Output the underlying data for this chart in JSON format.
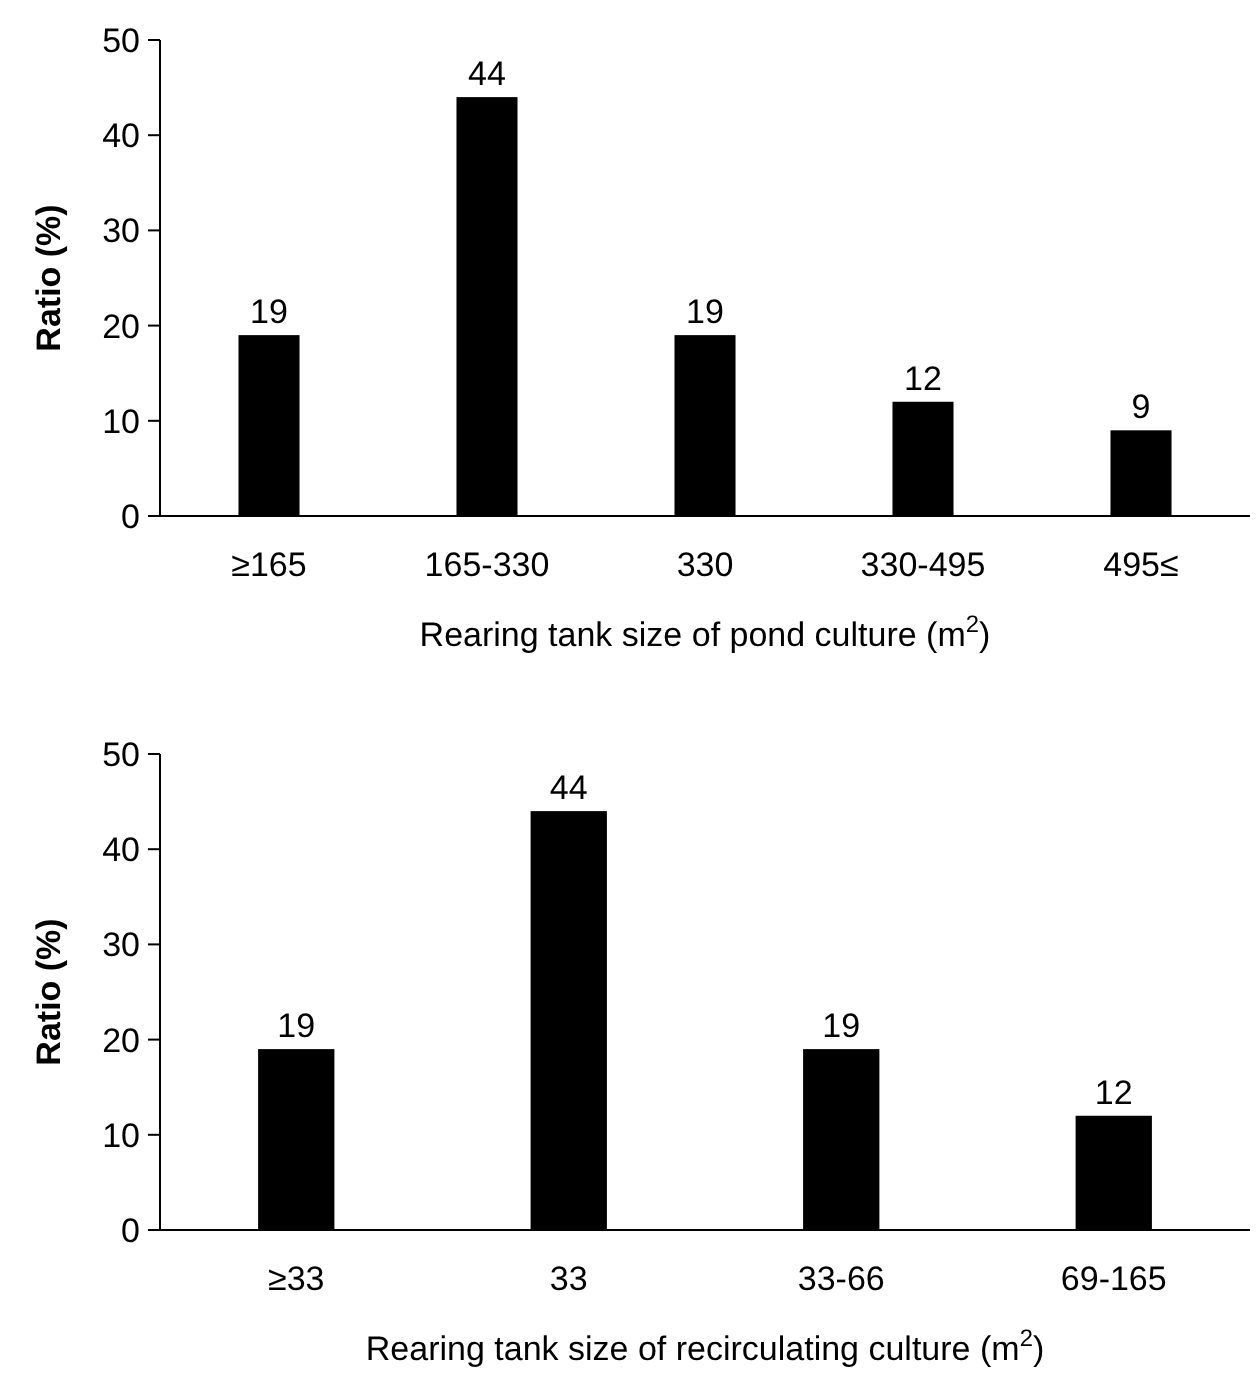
{
  "chart_data": [
    {
      "type": "bar",
      "categories": [
        "≥165",
        "165-330",
        "330",
        "330-495",
        "495≤"
      ],
      "values": [
        19,
        44,
        19,
        12,
        9
      ],
      "color": "#000000",
      "ylim": [
        0,
        50
      ],
      "yticks": [
        0,
        10,
        20,
        30,
        40,
        50
      ],
      "ylabel": "Ratio (%)",
      "xlabel": "Rearing tank size of pond culture (m$^{2}$)",
      "data_labels": true,
      "grid": false
    },
    {
      "type": "bar",
      "categories": [
        "≥33",
        "33",
        "33-66",
        "69-165"
      ],
      "values": [
        19,
        44,
        19,
        12
      ],
      "color": "#000000",
      "ylim": [
        0,
        50
      ],
      "yticks": [
        0,
        10,
        20,
        30,
        40,
        50
      ],
      "ylabel": "Ratio (%)",
      "xlabel": "Rearing tank size of recirculating culture (m$^{2}$)",
      "data_labels": true,
      "grid": false
    }
  ]
}
